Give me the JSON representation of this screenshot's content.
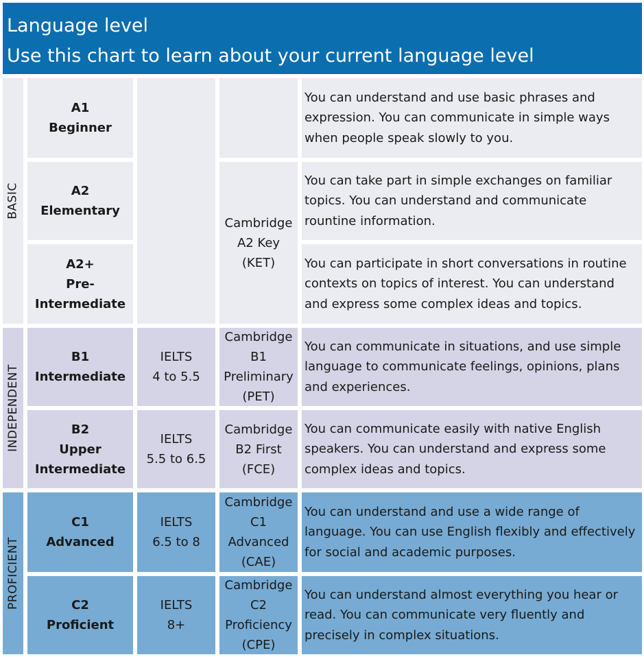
{
  "header": {
    "title": "Language level",
    "subtitle": "Use this chart to learn about your current language level"
  },
  "bands": {
    "basic": "BASIC",
    "independent": "INDEPENDENT",
    "proficient": "PROFICIENT"
  },
  "levels": [
    {
      "code": "A1",
      "name": [
        "Beginner"
      ],
      "ielts": [],
      "cambridge": [],
      "description": "You can understand and use basic phrases and expression. You can communicate in simple ways when people speak slowly to you."
    },
    {
      "code": "A2",
      "name": [
        "Elementary"
      ],
      "ielts": [],
      "cambridge": [
        "Cambridge",
        "A2 Key",
        "(KET)"
      ],
      "description": "You can take part in simple exchanges on familiar topics. You can understand and communicate rountine information."
    },
    {
      "code": "A2+",
      "name": [
        "Pre-",
        "Intermediate"
      ],
      "ielts": [],
      "cambridge": [],
      "description": "You can participate in short conversations in routine contexts on topics of interest. You can understand and express some complex ideas and topics."
    },
    {
      "code": "B1",
      "name": [
        "Intermediate"
      ],
      "ielts": [
        "IELTS",
        "4 to 5.5"
      ],
      "cambridge": [
        "Cambridge",
        "B1",
        "Preliminary",
        "(PET)"
      ],
      "description": "You can communicate in situations, and use simple language to communicate feelings, opinions, plans and experiences."
    },
    {
      "code": "B2",
      "name": [
        "Upper",
        "Intermediate"
      ],
      "ielts": [
        "IELTS",
        "5.5 to 6.5"
      ],
      "cambridge": [
        "Cambridge",
        "B2 First",
        "(FCE)"
      ],
      "description": "You can communicate easily with native English speakers. You can understand and express some complex ideas and topics."
    },
    {
      "code": "C1",
      "name": [
        "Advanced"
      ],
      "ielts": [
        "IELTS",
        "6.5 to 8"
      ],
      "cambridge": [
        "Cambridge",
        "C1",
        "Advanced",
        "(CAE)"
      ],
      "description": "You can understand and use a wide range of language. You can use English flexibly and effectively for social and academic purposes."
    },
    {
      "code": "C2",
      "name": [
        "Proficient"
      ],
      "ielts": [
        "IELTS",
        "8+"
      ],
      "cambridge": [
        "Cambridge",
        "C2",
        "Proficiency",
        "(CPE)"
      ],
      "description": "You can understand almost everything you hear or read. You can communicate very fluently and precisely in complex situations."
    }
  ],
  "colors": {
    "header": "#0a6eaf",
    "basic": "#ebebf2",
    "independent": "#d5d4e6",
    "proficient": "#77abd3"
  }
}
